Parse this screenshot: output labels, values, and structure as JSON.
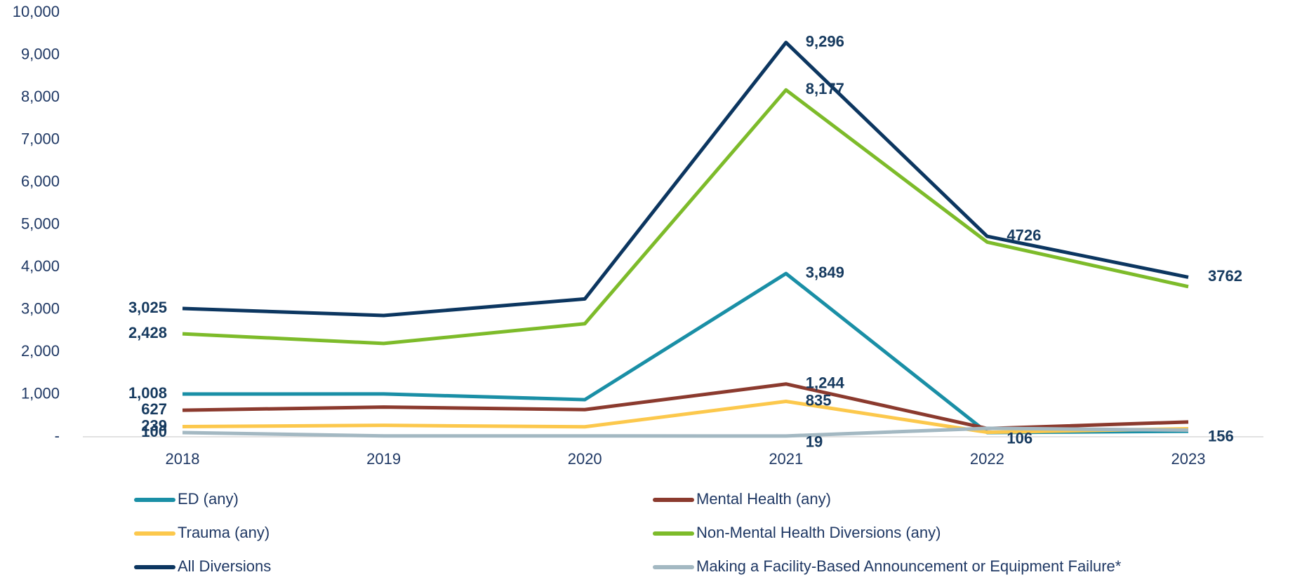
{
  "chart_data": {
    "type": "line",
    "x": [
      "2018",
      "2019",
      "2020",
      "2021",
      "2022",
      "2023"
    ],
    "ylim": [
      0,
      10000
    ],
    "yticks": [
      {
        "value": 0,
        "label": "-"
      },
      {
        "value": 1000,
        "label": "1,000"
      },
      {
        "value": 2000,
        "label": "2,000"
      },
      {
        "value": 3000,
        "label": "3,000"
      },
      {
        "value": 4000,
        "label": "4,000"
      },
      {
        "value": 5000,
        "label": "5,000"
      },
      {
        "value": 6000,
        "label": "6,000"
      },
      {
        "value": 7000,
        "label": "7,000"
      },
      {
        "value": 8000,
        "label": "8,000"
      },
      {
        "value": 9000,
        "label": "9,000"
      },
      {
        "value": 10000,
        "label": "10,000"
      }
    ],
    "grid": false,
    "legend": "bottom",
    "series": [
      {
        "name": "ED (any)",
        "color": "#1a8fa6",
        "values": [
          1008,
          1010,
          875,
          3849,
          100,
          130
        ],
        "value_labels": [
          "1,008",
          null,
          null,
          "3,849",
          null,
          null
        ]
      },
      {
        "name": "Mental Health (any)",
        "color": "#8b3a2e",
        "values": [
          627,
          700,
          640,
          1244,
          195,
          350
        ],
        "value_labels": [
          "627",
          null,
          null,
          "1,244",
          null,
          null
        ]
      },
      {
        "name": "Trauma (any)",
        "color": "#fcc84c",
        "values": [
          239,
          270,
          235,
          835,
          106,
          190
        ],
        "value_labels": [
          "239",
          null,
          null,
          "835",
          "106",
          null
        ]
      },
      {
        "name": "Non-Mental Health Diversions (any)",
        "color": "#7dbb2a",
        "values": [
          2428,
          2200,
          2665,
          8177,
          4590,
          3540
        ],
        "value_labels": [
          "2,428",
          null,
          null,
          "8,177",
          null,
          null
        ]
      },
      {
        "name": "All Diversions",
        "color": "#0c3660",
        "values": [
          3025,
          2860,
          3250,
          9296,
          4726,
          3762
        ],
        "value_labels": [
          "3,025",
          null,
          null,
          "9,296",
          "4726",
          "3762"
        ]
      },
      {
        "name": "Making a Facility-Based Announcement or Equipment Failure*",
        "color": "#a3b8c2",
        "values": [
          100,
          20,
          20,
          19,
          200,
          156
        ],
        "value_labels": [
          "100",
          null,
          null,
          "19",
          null,
          "156"
        ]
      }
    ]
  }
}
